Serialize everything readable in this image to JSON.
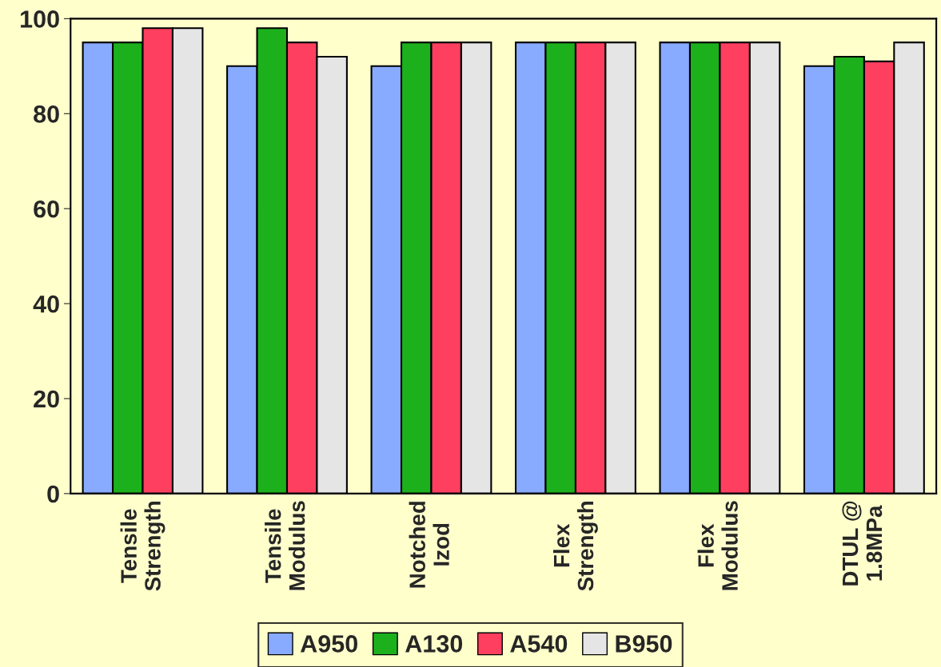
{
  "chart_data": {
    "type": "bar",
    "categories": [
      "Tensile\nStrength",
      "Tensile\nModulus",
      "Notched\nIzod",
      "Flex\nStrength",
      "Flex\nModulus",
      "DTUL @\n1.8MPa"
    ],
    "series": [
      {
        "name": "A950",
        "color": "#88aaff",
        "values": [
          95,
          90,
          90,
          95,
          95,
          90
        ]
      },
      {
        "name": "A130",
        "color": "#1db01d",
        "values": [
          95,
          98,
          95,
          95,
          95,
          92
        ]
      },
      {
        "name": "A540",
        "color": "#ff3f5f",
        "values": [
          98,
          95,
          95,
          95,
          95,
          91
        ]
      },
      {
        "name": "B950",
        "color": "#e5e5e5",
        "values": [
          98,
          92,
          95,
          95,
          95,
          95
        ]
      }
    ],
    "ylim": [
      0,
      100
    ],
    "yticks": [
      0,
      20,
      40,
      60,
      80,
      100
    ],
    "grid": false,
    "legend": "bottom"
  }
}
